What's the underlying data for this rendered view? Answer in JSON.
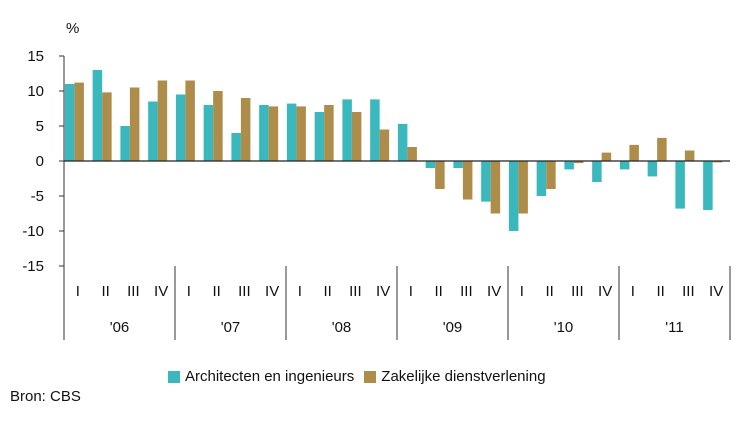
{
  "chart_data": {
    "type": "bar",
    "ylabel": "%",
    "ylim": [
      -15,
      15
    ],
    "yticks": [
      15,
      10,
      5,
      0,
      -5,
      -10,
      -15
    ],
    "grid": false,
    "quarters": [
      "I",
      "II",
      "III",
      "IV"
    ],
    "years": [
      "'06",
      "'07",
      "'08",
      "'09",
      "'10",
      "'11"
    ],
    "series": [
      {
        "name": "Architecten en ingenieurs",
        "color": "#3bb8bd",
        "values": [
          11,
          13,
          5,
          8.5,
          9.5,
          8,
          4,
          8,
          8.2,
          7,
          8.8,
          8.8,
          5.3,
          -1,
          -1,
          -5.8,
          -10,
          -5,
          -1.2,
          -3,
          -1.2,
          -2.2,
          -6.8,
          -7
        ]
      },
      {
        "name": "Zakelijke dienstverlening",
        "color": "#ae8d4a",
        "values": [
          11.2,
          9.8,
          10.5,
          11.5,
          11.5,
          10,
          9,
          7.8,
          7.8,
          8,
          7,
          4.5,
          2,
          -4,
          -5.5,
          -7.5,
          -7.5,
          -4,
          -0.3,
          1.2,
          2.3,
          3.3,
          1.5,
          -0.2
        ]
      }
    ],
    "legend_position": "bottom"
  },
  "source": "Bron: CBS"
}
